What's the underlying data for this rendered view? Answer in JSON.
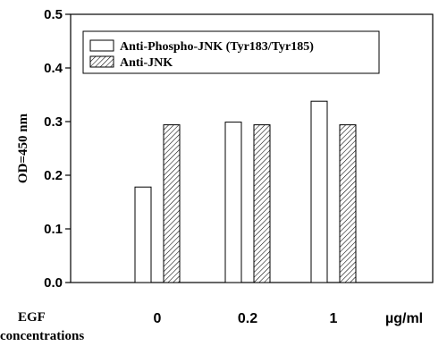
{
  "chart_data": {
    "type": "bar",
    "ylabel": "OD=450 nm",
    "xlabel_lines": [
      "EGF",
      "concentrations"
    ],
    "x_unit": "µg/ml",
    "categories": [
      "0",
      "0.2",
      "1"
    ],
    "ylim": [
      0,
      0.5
    ],
    "yticks": [
      "0.0",
      "0.1",
      "0.2",
      "0.3",
      "0.4",
      "0.5"
    ],
    "grid": false,
    "legend_position": "top",
    "series": [
      {
        "name": "Anti-Phospho-JNK (Tyr183/Tyr185)",
        "fill": "white",
        "values": [
          0.178,
          0.299,
          0.338
        ]
      },
      {
        "name": "Anti-JNK",
        "fill": "hatched",
        "values": [
          0.294,
          0.294,
          0.294
        ]
      }
    ]
  }
}
